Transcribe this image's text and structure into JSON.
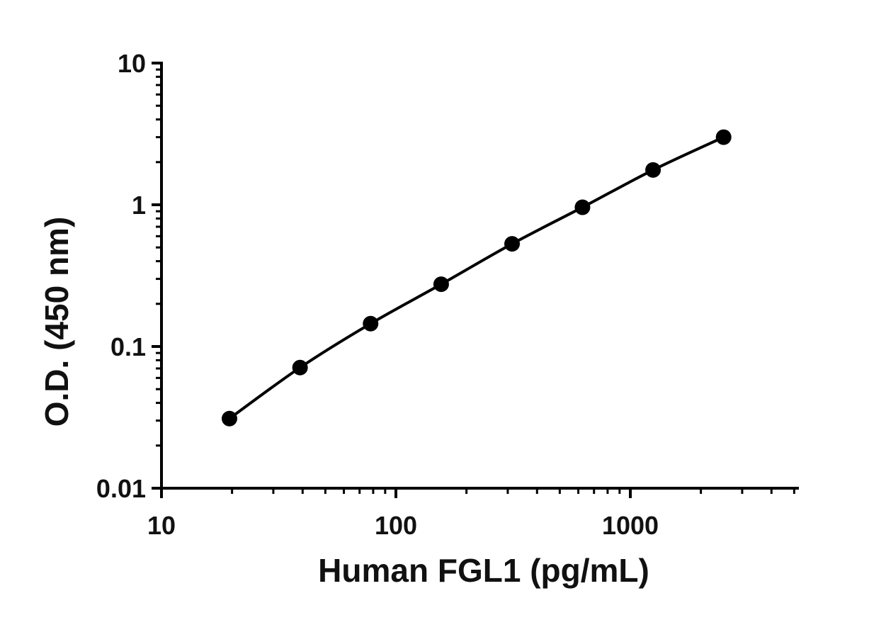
{
  "chart_data": {
    "type": "scatter",
    "title": "",
    "xlabel": "Human FGL1 (pg/mL)",
    "ylabel": "O.D. (450 nm)",
    "x_scale": "log",
    "y_scale": "log",
    "xlim": [
      10,
      5120
    ],
    "ylim": [
      0.01,
      10
    ],
    "x_ticks": [
      {
        "value": 10,
        "label": "10"
      },
      {
        "value": 100,
        "label": "100"
      },
      {
        "value": 1000,
        "label": "1000"
      }
    ],
    "y_ticks": [
      {
        "value": 0.01,
        "label": "0.01"
      },
      {
        "value": 0.1,
        "label": "0.1"
      },
      {
        "value": 1,
        "label": "1"
      },
      {
        "value": 10,
        "label": "10"
      }
    ],
    "grid": false,
    "legend": "none",
    "fit_line": true,
    "color": "#000000",
    "series": [
      {
        "x": [
          19.5,
          39,
          78,
          156,
          313,
          625,
          1250,
          2500
        ],
        "y": [
          0.031,
          0.071,
          0.145,
          0.275,
          0.53,
          0.96,
          1.76,
          3.0
        ]
      }
    ]
  }
}
